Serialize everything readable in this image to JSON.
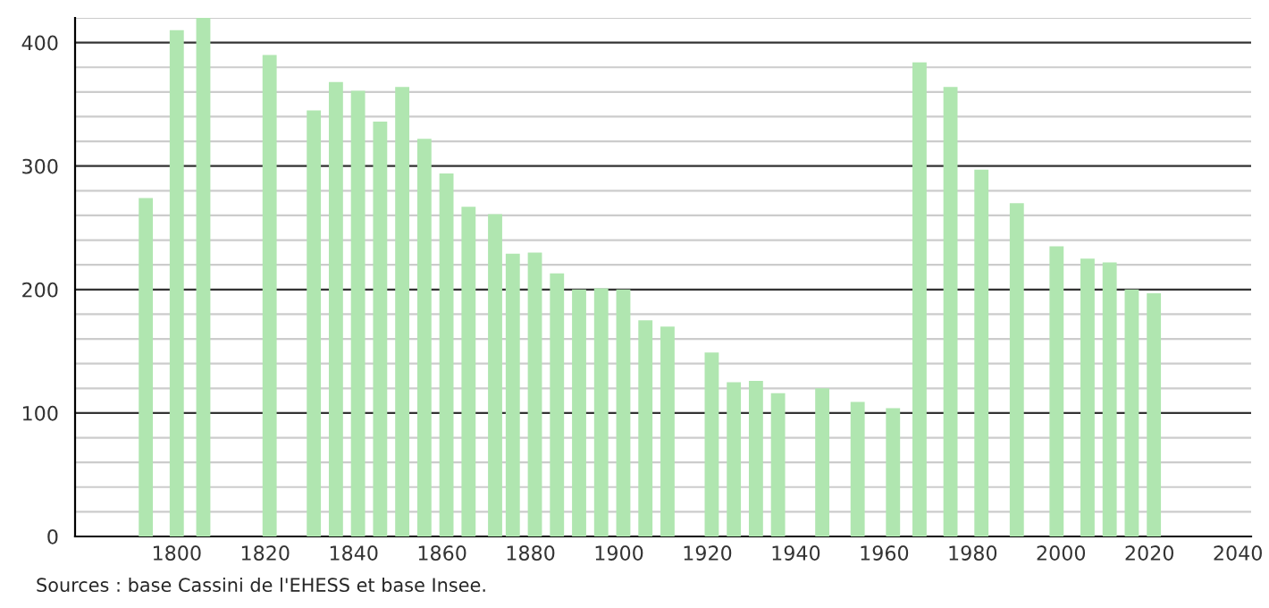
{
  "chart_data": {
    "type": "bar",
    "x": [
      1793,
      1800,
      1806,
      1821,
      1831,
      1836,
      1841,
      1846,
      1851,
      1856,
      1861,
      1866,
      1872,
      1876,
      1881,
      1886,
      1891,
      1896,
      1901,
      1906,
      1911,
      1921,
      1926,
      1931,
      1936,
      1946,
      1954,
      1962,
      1968,
      1975,
      1982,
      1990,
      1999,
      2006,
      2011,
      2016,
      2021
    ],
    "values": [
      274,
      410,
      420,
      390,
      345,
      368,
      361,
      336,
      364,
      322,
      294,
      267,
      261,
      229,
      230,
      213,
      200,
      201,
      200,
      175,
      170,
      149,
      125,
      126,
      116,
      120,
      109,
      104,
      384,
      364,
      297,
      270,
      235,
      225,
      222,
      200,
      197
    ],
    "color": "#b0e6b0",
    "xlim": [
      1777,
      2043
    ],
    "xticks": [
      1800,
      1820,
      1840,
      1860,
      1880,
      1900,
      1920,
      1940,
      1960,
      1980,
      2000,
      2020,
      2040
    ],
    "ylim": [
      0,
      420
    ],
    "yticks": [
      0,
      {
        "value": 20,
        "label": null
      },
      {
        "value": 40,
        "label": null
      },
      {
        "value": 60,
        "label": null
      },
      {
        "value": 80,
        "label": null
      },
      100,
      {
        "value": 120,
        "label": null
      },
      {
        "value": 140,
        "label": null
      },
      {
        "value": 160,
        "label": null
      },
      {
        "value": 180,
        "label": null
      },
      200,
      {
        "value": 220,
        "label": null
      },
      {
        "value": 240,
        "label": null
      },
      {
        "value": 260,
        "label": null
      },
      {
        "value": 280,
        "label": null
      },
      300,
      {
        "value": 320,
        "label": null
      },
      {
        "value": 340,
        "label": null
      },
      {
        "value": 360,
        "label": null
      },
      {
        "value": 380,
        "label": null
      },
      400,
      {
        "value": 420,
        "label": null
      }
    ],
    "grid": "y",
    "annotations": [
      "Sources : base Cassini de l'EHESS et base Insee."
    ]
  }
}
